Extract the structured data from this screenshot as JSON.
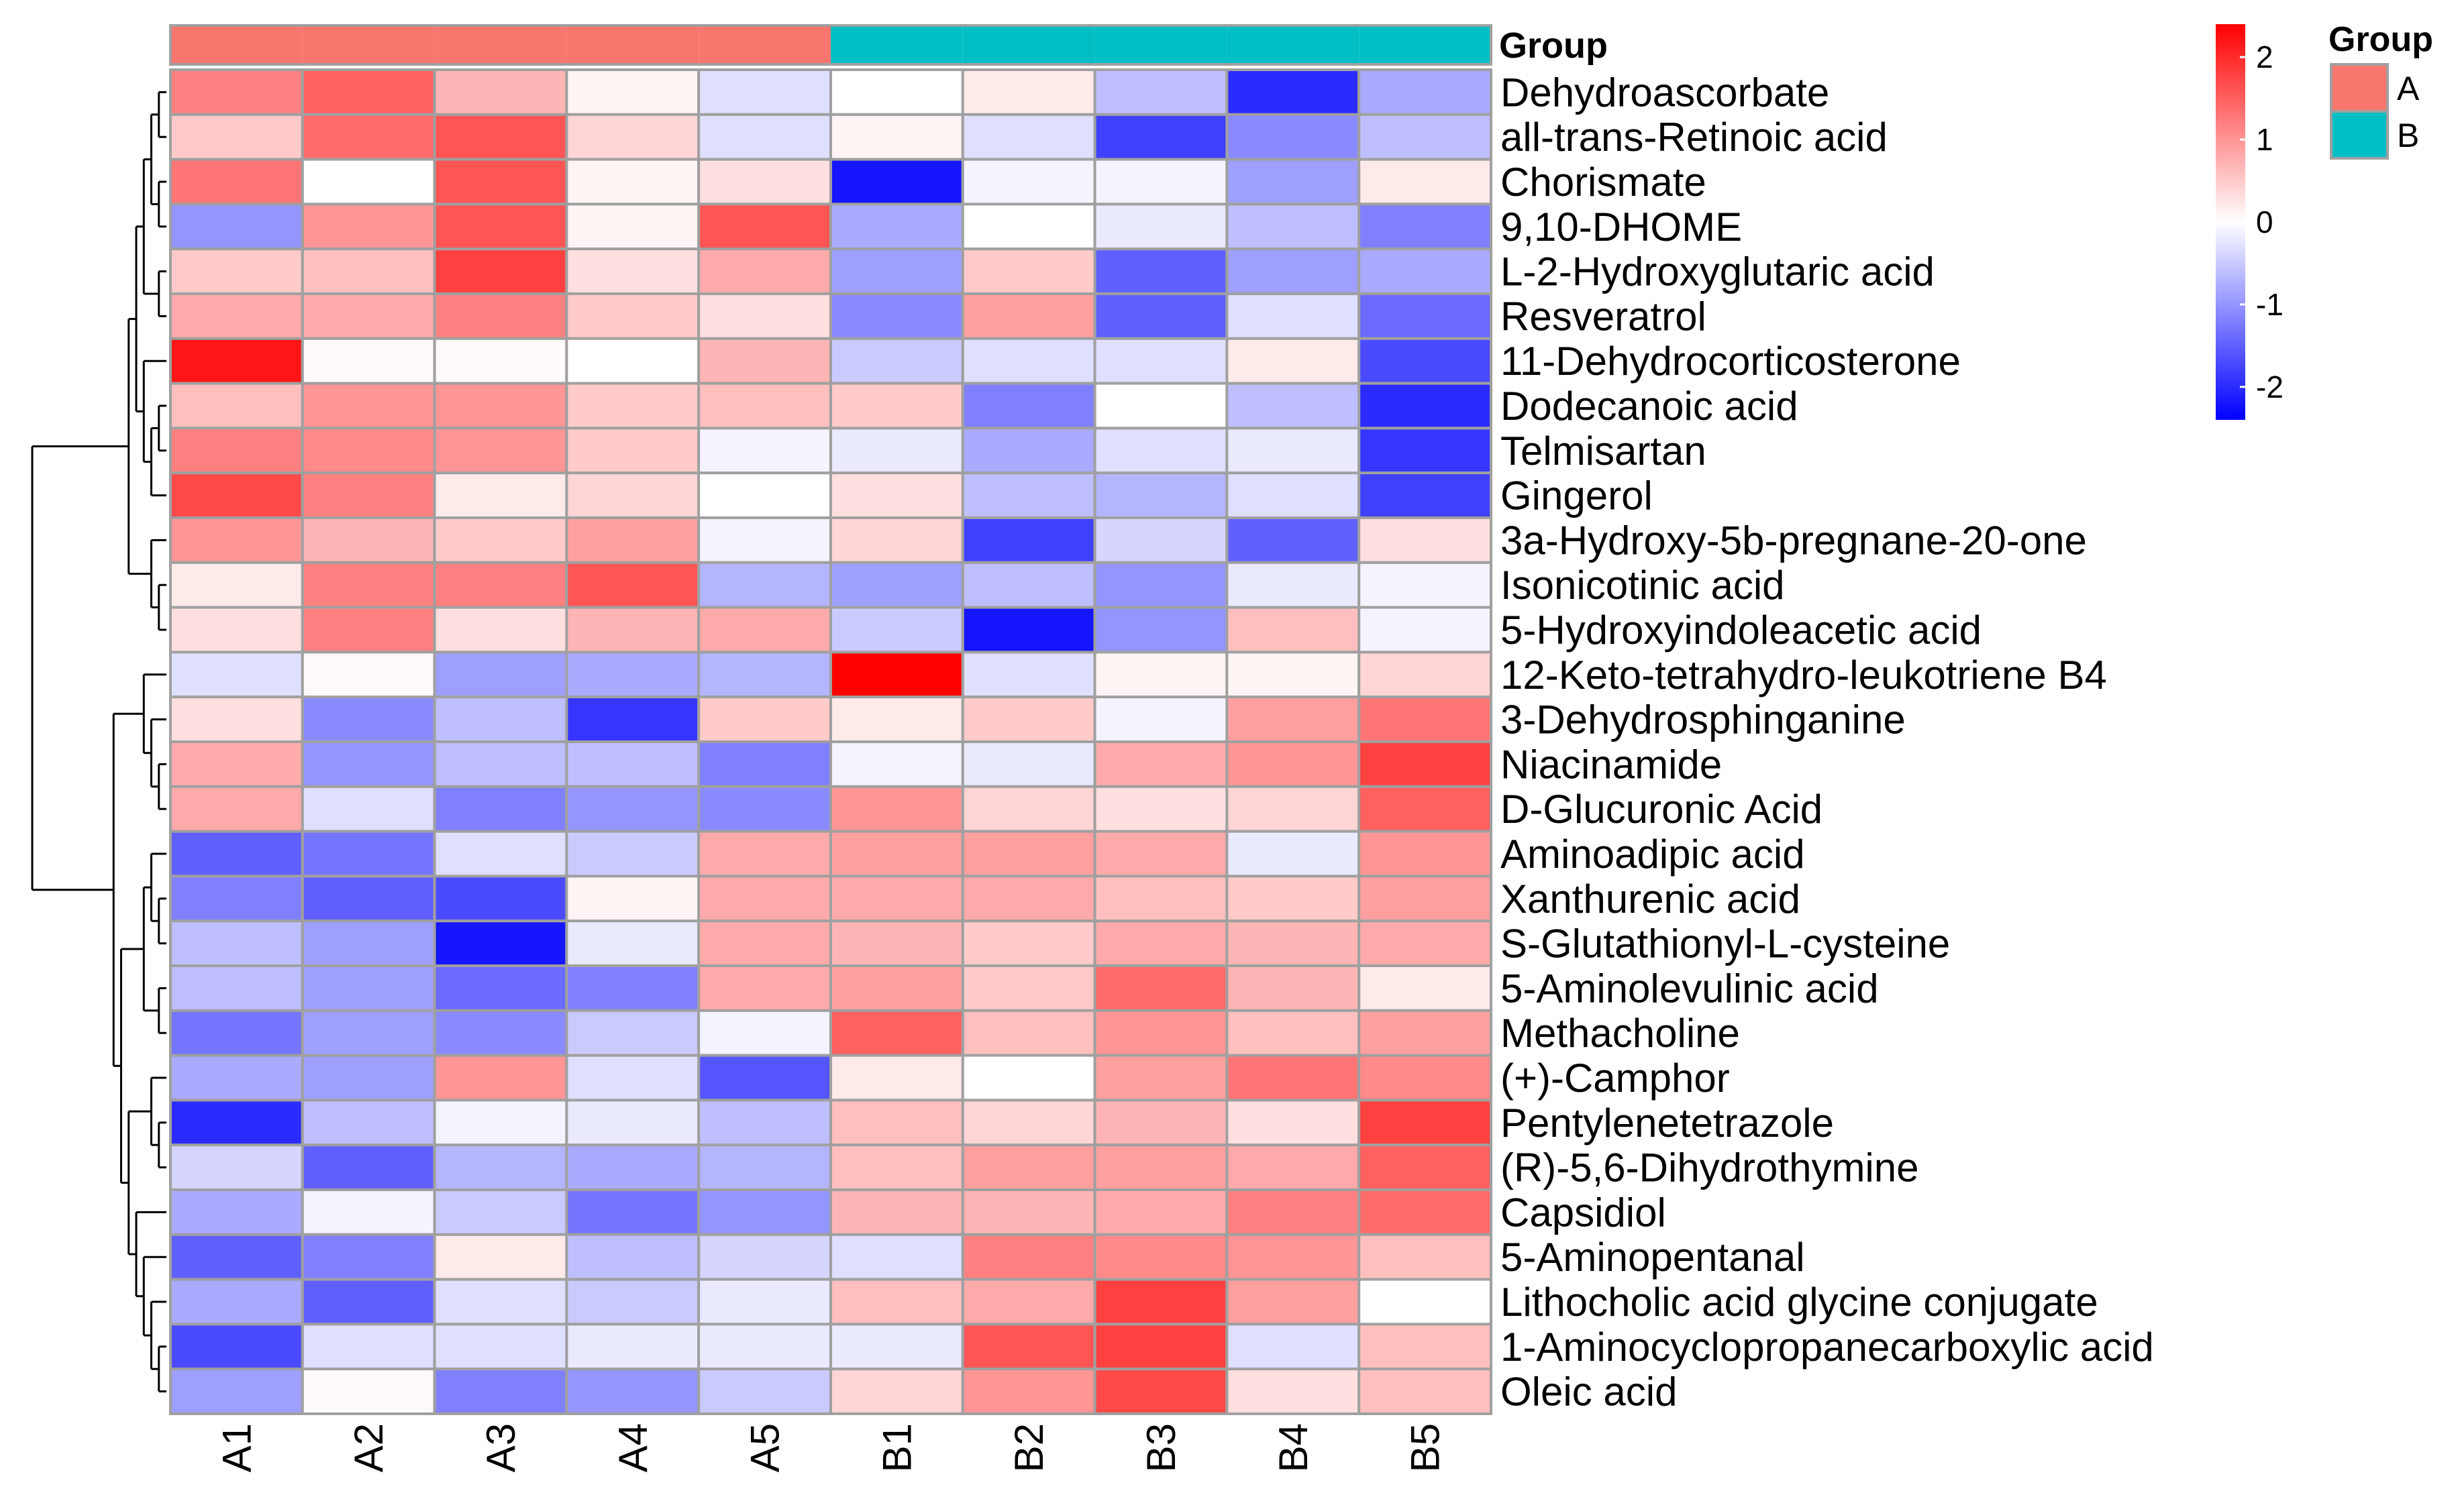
{
  "colors": {
    "low": "#0000ff",
    "mid": "#ffffff",
    "high": "#ff0000",
    "groupA": "#f8766d",
    "groupB": "#00bfc4",
    "border": "#a0a0a0"
  },
  "annotation_title": "Group",
  "chart_data": {
    "type": "heatmap",
    "title": "",
    "color_scale": {
      "min": -2.4,
      "max": 2.4,
      "ticks": [
        2,
        1,
        0,
        -1,
        -2
      ]
    },
    "color_legend": {
      "tick_labels": [
        "2",
        "1",
        "0",
        "-1",
        "-2"
      ]
    },
    "group_legend": {
      "title": "Group",
      "entries": [
        {
          "label": "A",
          "color": "#f8766d"
        },
        {
          "label": "B",
          "color": "#00bfc4"
        }
      ]
    },
    "columns": [
      "A1",
      "A2",
      "A3",
      "A4",
      "A5",
      "B1",
      "B2",
      "B3",
      "B4",
      "B5"
    ],
    "column_groups": [
      "A",
      "A",
      "A",
      "A",
      "A",
      "B",
      "B",
      "B",
      "B",
      "B"
    ],
    "rows": [
      "Dehydroascorbate",
      "all-trans-Retinoic acid",
      "Chorismate",
      "9,10-DHOME",
      "L-2-Hydroxyglutaric acid",
      "Resveratrol",
      "11-Dehydrocorticosterone",
      "Dodecanoic acid",
      "Telmisartan",
      "Gingerol",
      "3a-Hydroxy-5b-pregnane-20-one",
      "Isonicotinic acid",
      "5-Hydroxyindoleacetic acid",
      "12-Keto-tetrahydro-leukotriene B4",
      "3-Dehydrosphinganine",
      "Niacinamide",
      "D-Glucuronic Acid",
      "Aminoadipic acid",
      "Xanthurenic acid",
      "S-Glutathionyl-L-cysteine",
      "5-Aminolevulinic acid",
      "Methacholine",
      "(+)-Camphor",
      "Pentylenetetrazole",
      "(R)-5,6-Dihydrothymine",
      "Capsidiol",
      "5-Aminopentanal",
      "Lithocholic acid glycine conjugate",
      "1-Aminocyclopropanecarboxylic acid",
      "Oleic acid"
    ],
    "values": [
      [
        1.2,
        1.5,
        0.7,
        0.1,
        -0.3,
        0.0,
        0.2,
        -0.6,
        -2.0,
        -0.8
      ],
      [
        0.5,
        1.4,
        1.6,
        0.4,
        -0.3,
        0.1,
        -0.3,
        -1.8,
        -1.1,
        -0.6
      ],
      [
        1.3,
        0.0,
        1.6,
        0.1,
        0.3,
        -2.2,
        -0.1,
        -0.1,
        -0.9,
        0.2
      ],
      [
        -1.0,
        1.0,
        1.6,
        0.1,
        1.6,
        -0.8,
        0.0,
        -0.2,
        -0.6,
        -1.2
      ],
      [
        0.5,
        0.6,
        1.8,
        0.3,
        0.8,
        -0.9,
        0.5,
        -1.5,
        -0.9,
        -0.8
      ],
      [
        0.8,
        0.8,
        1.2,
        0.5,
        0.3,
        -1.1,
        0.9,
        -1.5,
        -0.3,
        -1.4
      ],
      [
        2.2,
        0.05,
        0.05,
        0.0,
        0.7,
        -0.5,
        -0.3,
        -0.3,
        0.2,
        -1.7
      ],
      [
        0.6,
        1.0,
        1.0,
        0.5,
        0.6,
        0.5,
        -1.2,
        0.0,
        -0.6,
        -2.0
      ],
      [
        1.2,
        1.1,
        1.0,
        0.5,
        -0.1,
        -0.2,
        -0.8,
        -0.3,
        -0.2,
        -1.9
      ],
      [
        1.7,
        1.2,
        0.2,
        0.4,
        0.0,
        0.3,
        -0.6,
        -0.7,
        -0.3,
        -1.8
      ],
      [
        1.0,
        0.7,
        0.5,
        0.9,
        -0.1,
        0.4,
        -1.8,
        -0.4,
        -1.5,
        0.3
      ],
      [
        0.2,
        1.2,
        1.2,
        1.6,
        -0.7,
        -0.9,
        -0.6,
        -1.0,
        -0.2,
        -0.1
      ],
      [
        0.3,
        1.2,
        0.3,
        0.7,
        0.8,
        -0.5,
        -2.2,
        -1.0,
        0.6,
        -0.1
      ],
      [
        -0.3,
        0.05,
        -0.9,
        -0.8,
        -0.7,
        2.4,
        -0.3,
        0.1,
        0.1,
        0.4
      ],
      [
        0.3,
        -1.1,
        -0.6,
        -1.9,
        0.5,
        0.2,
        0.5,
        -0.1,
        0.9,
        1.3
      ],
      [
        0.8,
        -1.0,
        -0.6,
        -0.6,
        -1.2,
        -0.1,
        -0.2,
        0.8,
        1.0,
        1.8
      ],
      [
        0.8,
        -0.3,
        -1.2,
        -1.0,
        -1.1,
        1.0,
        0.4,
        0.3,
        0.4,
        1.5
      ],
      [
        -1.5,
        -1.3,
        -0.3,
        -0.5,
        0.8,
        0.9,
        0.9,
        0.8,
        -0.2,
        1.0
      ],
      [
        -1.2,
        -1.5,
        -1.7,
        0.1,
        0.8,
        0.8,
        0.8,
        0.6,
        0.5,
        0.9
      ],
      [
        -0.6,
        -0.9,
        -2.2,
        -0.2,
        0.8,
        0.7,
        0.5,
        0.8,
        0.7,
        0.8
      ],
      [
        -0.6,
        -0.9,
        -1.4,
        -1.2,
        0.8,
        0.9,
        0.5,
        1.4,
        0.7,
        0.2
      ],
      [
        -1.3,
        -0.9,
        -1.1,
        -0.5,
        -0.1,
        1.5,
        0.6,
        1.0,
        0.6,
        0.9
      ],
      [
        -0.8,
        -0.9,
        1.0,
        -0.3,
        -1.6,
        0.2,
        0.0,
        0.9,
        1.3,
        1.1
      ],
      [
        -2.0,
        -0.6,
        -0.1,
        -0.2,
        -0.6,
        0.6,
        0.4,
        0.7,
        0.3,
        1.8
      ],
      [
        -0.4,
        -1.5,
        -0.7,
        -0.8,
        -0.7,
        0.6,
        0.9,
        0.9,
        0.8,
        1.5
      ],
      [
        -0.8,
        -0.1,
        -0.5,
        -1.3,
        -1.0,
        0.7,
        0.7,
        0.8,
        1.2,
        1.4
      ],
      [
        -1.5,
        -1.2,
        0.2,
        -0.6,
        -0.4,
        -0.3,
        1.2,
        1.1,
        1.0,
        0.6
      ],
      [
        -0.8,
        -1.5,
        -0.3,
        -0.5,
        -0.2,
        0.6,
        0.8,
        1.8,
        0.9,
        0.0
      ],
      [
        -1.7,
        -0.3,
        -0.3,
        -0.2,
        -0.2,
        -0.2,
        1.6,
        1.8,
        -0.3,
        0.6
      ],
      [
        -0.9,
        0.05,
        -1.2,
        -1.0,
        -0.5,
        0.4,
        1.0,
        1.7,
        0.3,
        0.6
      ]
    ]
  }
}
